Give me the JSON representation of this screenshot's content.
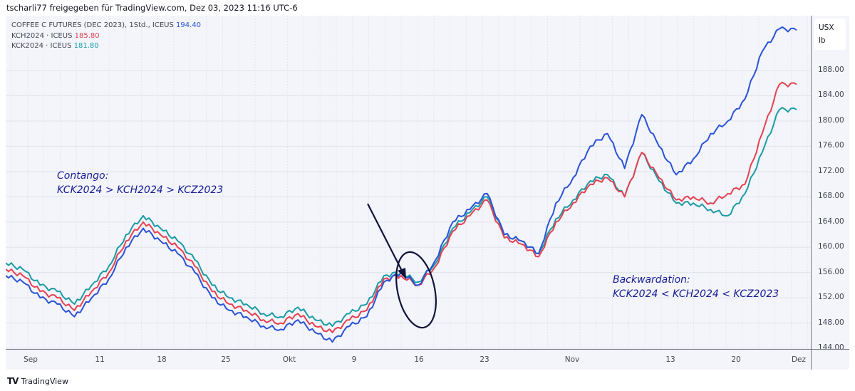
{
  "header": {
    "attribution": "tscharli77 freigegeben für TradingView.com, Dez 03, 2023 11:16 UTC-6"
  },
  "legend": [
    {
      "label": "COFFEE C FUTURES (DEC 2023), 1Std., ICEUS",
      "value": "194.40",
      "color": "#2a52d6"
    },
    {
      "label": "KCH2024 · ICEUS",
      "value": "185.80",
      "color": "#e5414f"
    },
    {
      "label": "KCK2024 · ICEUS",
      "value": "181.80",
      "color": "#1a9ba5"
    }
  ],
  "price_axis": {
    "unit_line1": "USX",
    "unit_line2": "lb",
    "ticks": [
      "188.00",
      "184.00",
      "180.00",
      "176.00",
      "172.00",
      "168.00",
      "164.00",
      "160.00",
      "156.00",
      "152.00",
      "148.00",
      "144.00"
    ]
  },
  "time_axis": {
    "labels": [
      "Sep",
      "11",
      "18",
      "25",
      "Okt",
      "9",
      "16",
      "23",
      "Nov",
      "13",
      "20",
      "Dez"
    ]
  },
  "annotations": {
    "contango_title": "Contango:",
    "contango_text": "KCK2024 > KCH2024 > KCZ2023",
    "backwardation_title": "Backwardation:",
    "backwardation_text": "KCK2024 < KCH2024 < KCZ2023"
  },
  "footer": {
    "brand": "TradingView",
    "logo": "TV"
  },
  "chart_data": {
    "type": "line",
    "title": "COFFEE C FUTURES (DEC 2023), 1Std., ICEUS",
    "xlabel": "",
    "ylabel": "USX/lb",
    "ylim": [
      144,
      196
    ],
    "grid": true,
    "legend_position": "top-left",
    "x_tick_labels": [
      "Sep",
      "11",
      "18",
      "25",
      "Okt",
      "9",
      "16",
      "23",
      "Nov",
      "13",
      "20",
      "Dez"
    ],
    "x": [
      "Sep 1",
      "Sep 4",
      "Sep 6",
      "Sep 8",
      "Sep 11",
      "Sep 13",
      "Sep 15",
      "Sep 18",
      "Sep 19",
      "Sep 20",
      "Sep 21",
      "Sep 22",
      "Sep 25",
      "Sep 27",
      "Sep 29",
      "Okt 2",
      "Okt 4",
      "Okt 6",
      "Okt 9",
      "Okt 10",
      "Okt 11",
      "Okt 13",
      "Okt 16",
      "Okt 17",
      "Okt 18",
      "Okt 20",
      "Okt 23",
      "Okt 25",
      "Okt 26",
      "Okt 27",
      "Okt 30",
      "Nov 1",
      "Nov 3",
      "Nov 6",
      "Nov 8",
      "Nov 10",
      "Nov 13",
      "Nov 15",
      "Nov 17",
      "Nov 20",
      "Nov 22",
      "Nov 24",
      "Nov 27",
      "Nov 28",
      "Nov 29",
      "Nov 30",
      "Dez 1"
    ],
    "series": [
      {
        "name": "KCZ2023 (COFFEE C FUTURES DEC 2023)",
        "color": "#2a52d6",
        "values": [
          155.5,
          154.5,
          152.0,
          151.0,
          149.0,
          152.0,
          155.0,
          160.0,
          163.0,
          161.0,
          159.0,
          156.0,
          152.0,
          150.0,
          149.0,
          147.5,
          147.0,
          148.5,
          146.5,
          145.0,
          147.5,
          149.0,
          154.5,
          156.0,
          154.0,
          158.0,
          164.0,
          166.0,
          168.5,
          162.0,
          161.0,
          159.0,
          167.0,
          171.0,
          176.0,
          178.0,
          172.5,
          181.0,
          176.0,
          171.5,
          174.0,
          178.0,
          180.0,
          183.5,
          191.0,
          194.6,
          194.4
        ]
      },
      {
        "name": "KCH2024",
        "color": "#e5414f",
        "values": [
          156.5,
          155.5,
          153.0,
          152.0,
          150.0,
          153.0,
          156.0,
          161.0,
          164.0,
          162.0,
          160.0,
          157.0,
          153.0,
          151.0,
          150.0,
          148.5,
          148.0,
          149.5,
          147.5,
          146.5,
          148.5,
          150.0,
          155.0,
          155.5,
          154.0,
          157.0,
          162.5,
          165.0,
          167.5,
          161.5,
          160.5,
          158.5,
          164.0,
          167.0,
          170.0,
          171.0,
          168.0,
          175.0,
          171.0,
          167.5,
          168.0,
          167.0,
          168.5,
          170.0,
          178.0,
          185.8,
          185.8
        ]
      },
      {
        "name": "KCK2024",
        "color": "#1a9ba5",
        "values": [
          157.5,
          156.5,
          154.0,
          153.0,
          151.0,
          154.0,
          157.0,
          162.0,
          165.0,
          163.0,
          161.0,
          158.0,
          154.0,
          152.0,
          151.0,
          149.5,
          149.0,
          150.5,
          148.5,
          147.5,
          149.5,
          151.0,
          155.5,
          156.0,
          154.5,
          157.5,
          163.0,
          165.5,
          168.0,
          162.0,
          161.0,
          159.0,
          164.5,
          167.5,
          170.5,
          171.5,
          168.0,
          175.0,
          170.5,
          167.0,
          167.0,
          166.0,
          165.0,
          168.5,
          175.0,
          181.8,
          181.8
        ]
      }
    ]
  }
}
